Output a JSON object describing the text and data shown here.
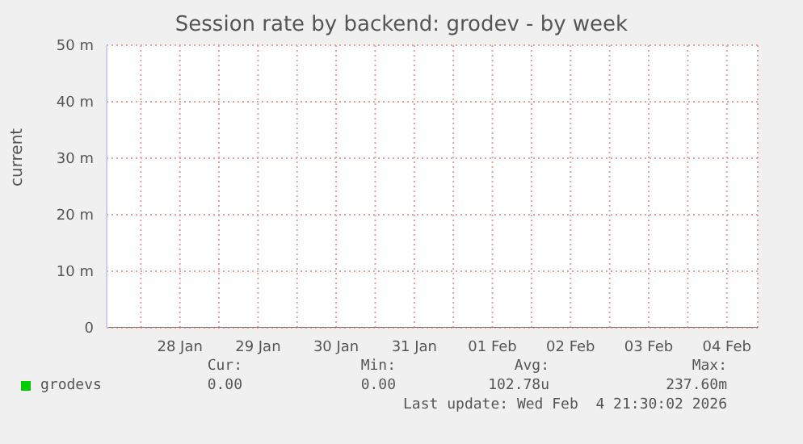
{
  "chart_data": {
    "type": "line",
    "title": "Session rate by backend: grodev - by week",
    "ylabel": "current",
    "x": [
      "2026-01-27T14:00",
      "2026-01-28T12:00",
      "2026-01-29T12:00",
      "2026-01-30T12:00",
      "2026-01-31T12:00",
      "2026-02-01T12:00",
      "2026-02-02T12:00",
      "2026-02-03T12:00",
      "2026-02-04T12:00",
      "2026-02-04T21:30"
    ],
    "series": [
      {
        "name": "grodevs",
        "color": "#00cc00",
        "values": [
          0,
          0,
          0,
          0,
          0,
          0,
          0,
          0,
          0,
          0
        ]
      }
    ],
    "xlim": [
      "2026-01-27T13:30",
      "2026-02-04T21:30"
    ],
    "xticks": [
      {
        "value": "2026-01-28T00:00",
        "label": null
      },
      {
        "value": "2026-01-28T12:00",
        "label": "28 Jan"
      },
      {
        "value": "2026-01-29T00:00",
        "label": null
      },
      {
        "value": "2026-01-29T12:00",
        "label": "29 Jan"
      },
      {
        "value": "2026-01-30T00:00",
        "label": null
      },
      {
        "value": "2026-01-30T12:00",
        "label": "30 Jan"
      },
      {
        "value": "2026-01-31T00:00",
        "label": null
      },
      {
        "value": "2026-01-31T12:00",
        "label": "31 Jan"
      },
      {
        "value": "2026-02-01T00:00",
        "label": null
      },
      {
        "value": "2026-02-01T12:00",
        "label": "01 Feb"
      },
      {
        "value": "2026-02-02T00:00",
        "label": null
      },
      {
        "value": "2026-02-02T12:00",
        "label": "02 Feb"
      },
      {
        "value": "2026-02-03T00:00",
        "label": null
      },
      {
        "value": "2026-02-03T12:00",
        "label": "03 Feb"
      },
      {
        "value": "2026-02-04T00:00",
        "label": null
      },
      {
        "value": "2026-02-04T12:00",
        "label": "04 Feb"
      }
    ],
    "ylim": [
      0,
      50
    ],
    "yticks": [
      0,
      {
        "value": 10,
        "label": "10 m"
      },
      {
        "value": 20,
        "label": "20 m"
      },
      {
        "value": 30,
        "label": "30 m"
      },
      {
        "value": 40,
        "label": "40 m"
      },
      {
        "value": 50,
        "label": "50 m"
      }
    ],
    "grid": true,
    "legend": "bottom left",
    "annotations": [
      "Cur:",
      "Min:",
      "Avg:",
      "Max:",
      "0.00",
      "0.00",
      "102.78u",
      "237.60m",
      "Last update: Wed Feb  4 21:30:02 2026"
    ]
  }
}
